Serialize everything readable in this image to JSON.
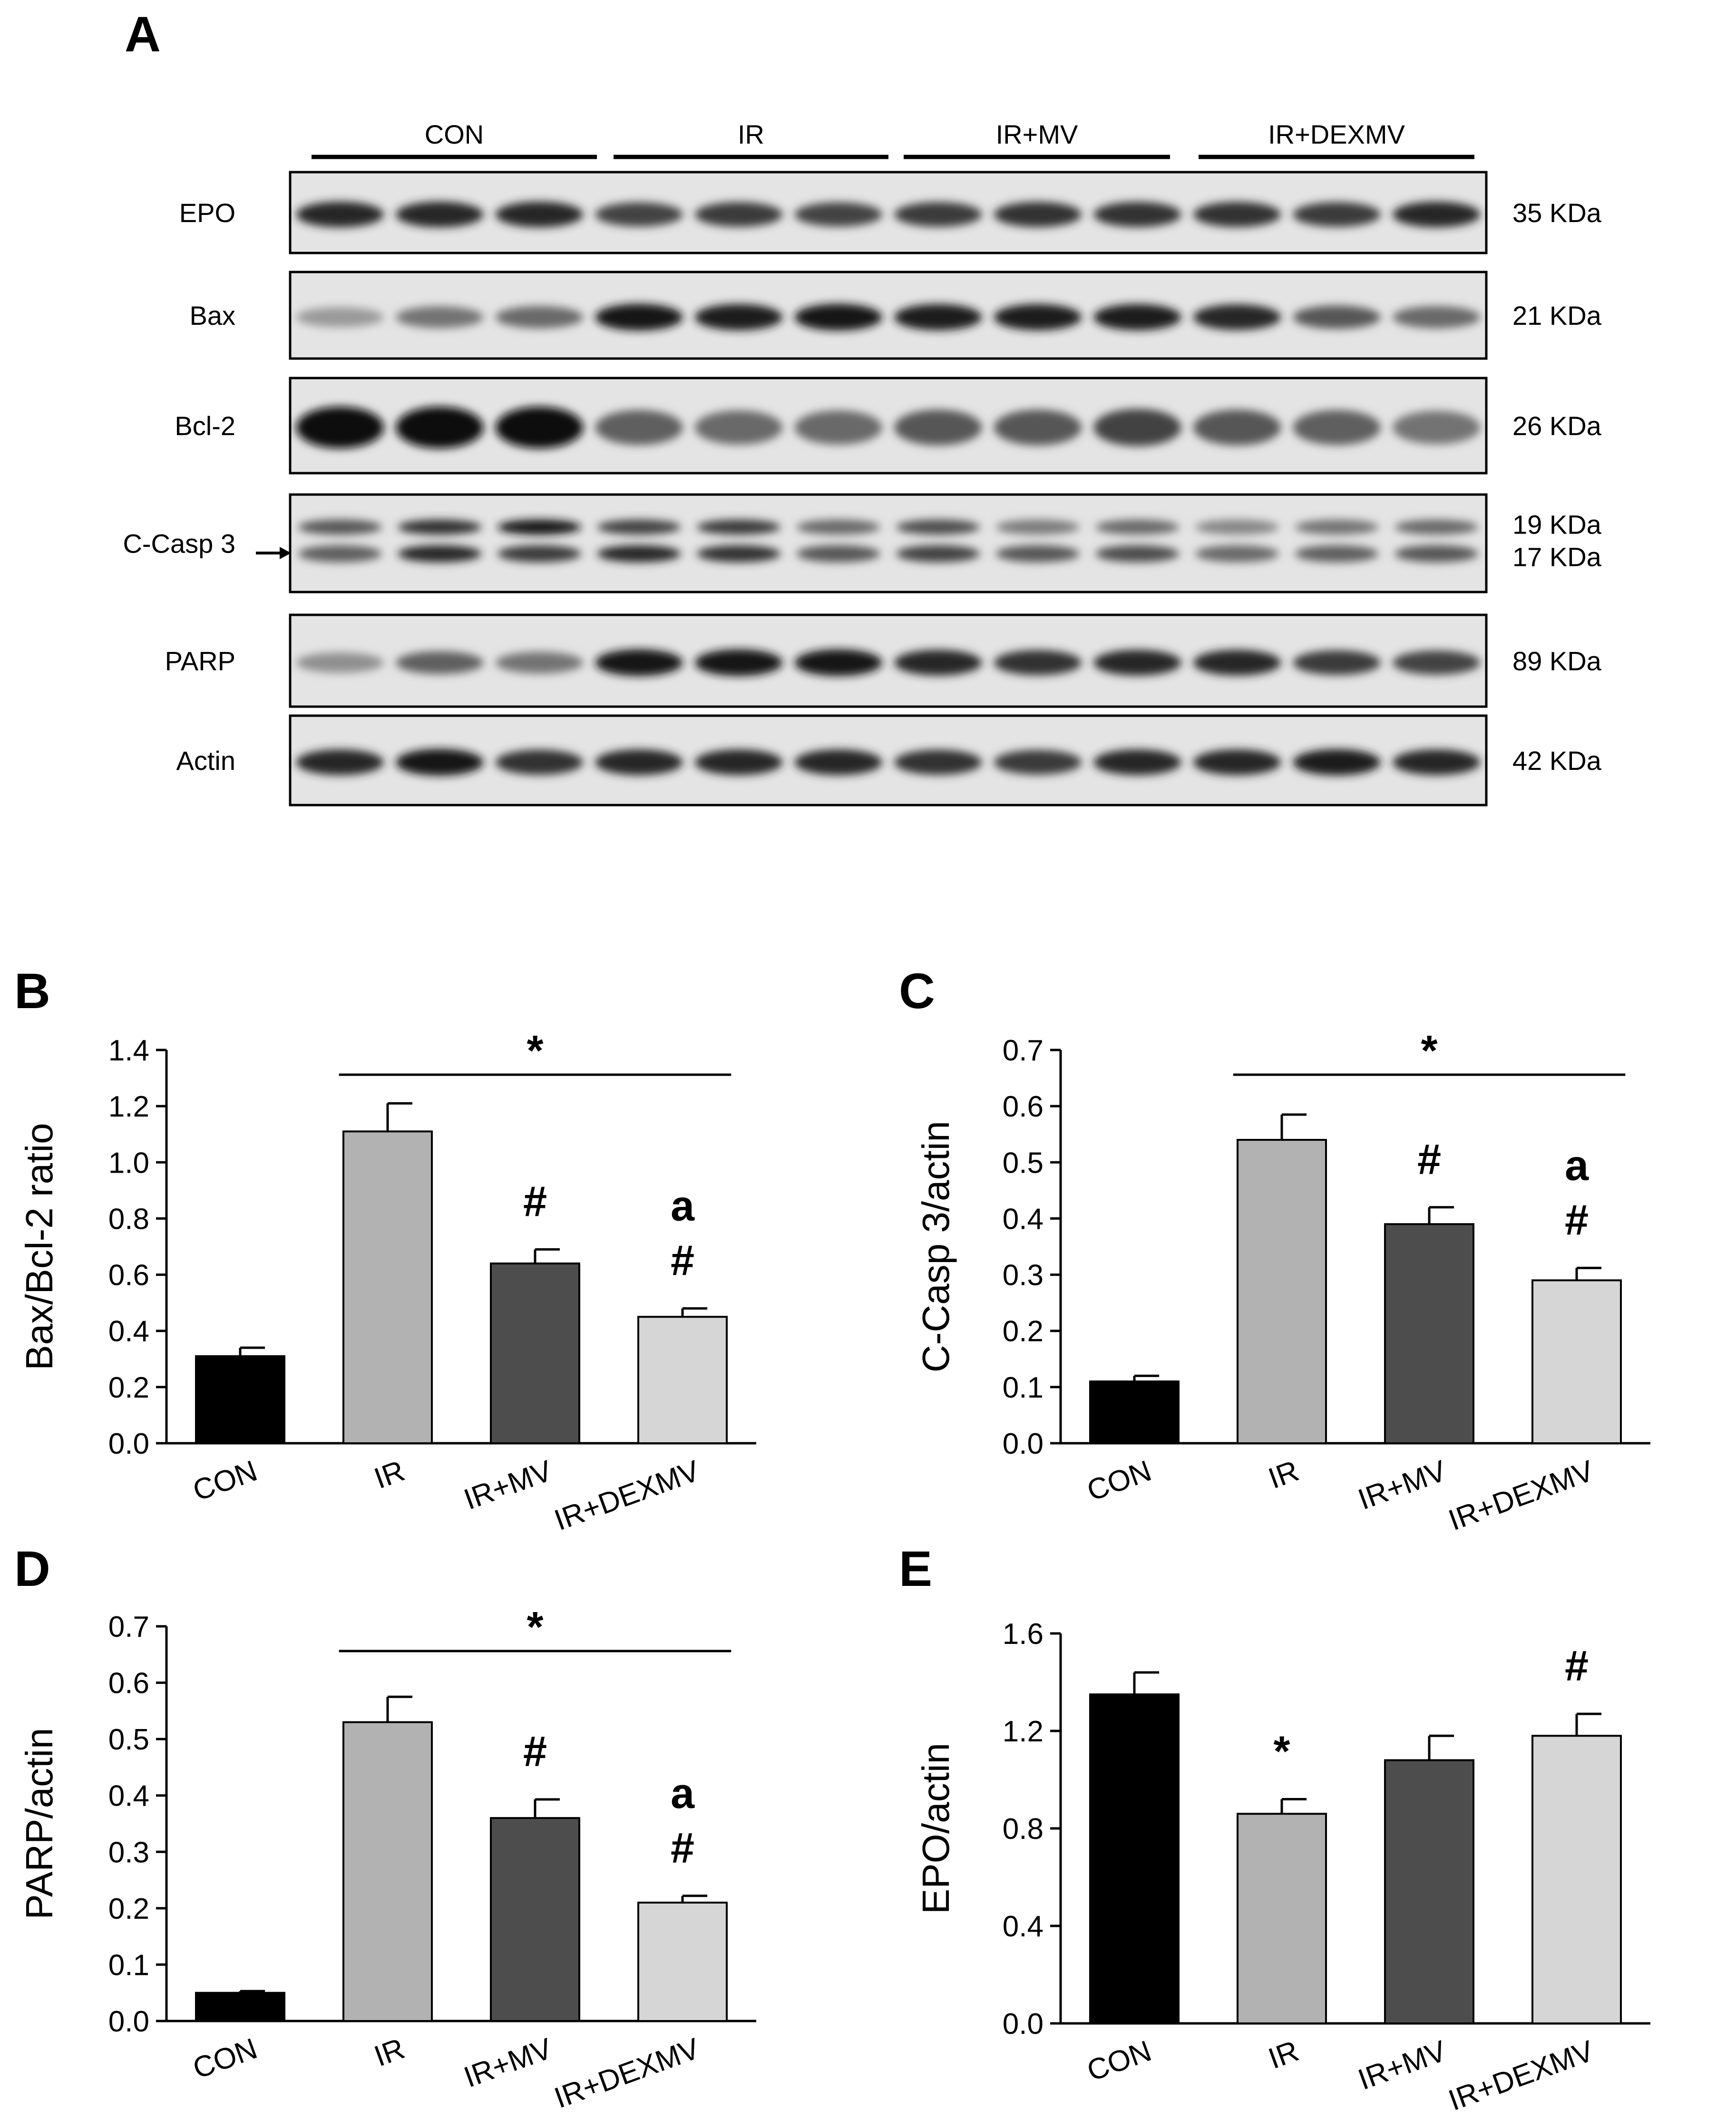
{
  "blot": {
    "panel": "A",
    "groups": [
      "CON",
      "IR",
      "IR+MV",
      "IR+DEXMV"
    ],
    "rows": [
      {
        "name": "EPO",
        "size": "35 KDa"
      },
      {
        "name": "Bax",
        "size": "21 KDa"
      },
      {
        "name": "Bcl-2",
        "size": "26 KDa"
      },
      {
        "name": "C-Casp 3",
        "size": "19 KDa",
        "size2": "17 KDa"
      },
      {
        "name": "PARP",
        "size": "89 KDa"
      },
      {
        "name": "Actin",
        "size": "42 KDa"
      }
    ],
    "bands": {
      "EPO": {
        "top": [
          0.85,
          0.85,
          0.85,
          0.7,
          0.75,
          0.7,
          0.75,
          0.8,
          0.8,
          0.8,
          0.75,
          0.85
        ]
      },
      "Bax": {
        "top": [
          0.25,
          0.45,
          0.5,
          0.95,
          0.9,
          0.95,
          0.9,
          0.9,
          0.9,
          0.85,
          0.6,
          0.5
        ]
      },
      "Bcl-2": {
        "top": [
          1.0,
          1.0,
          1.0,
          0.55,
          0.5,
          0.5,
          0.6,
          0.6,
          0.7,
          0.6,
          0.55,
          0.45
        ]
      },
      "C-Casp 3": {
        "top": [
          0.6,
          0.8,
          0.95,
          0.7,
          0.75,
          0.5,
          0.65,
          0.4,
          0.5,
          0.35,
          0.45,
          0.5
        ],
        "bottom": [
          0.55,
          0.85,
          0.75,
          0.85,
          0.8,
          0.6,
          0.7,
          0.6,
          0.65,
          0.5,
          0.55,
          0.6
        ]
      },
      "PARP": {
        "top": [
          0.3,
          0.55,
          0.45,
          0.95,
          0.95,
          0.95,
          0.85,
          0.8,
          0.85,
          0.85,
          0.75,
          0.7
        ]
      },
      "Actin": {
        "top": [
          0.85,
          0.95,
          0.8,
          0.85,
          0.85,
          0.85,
          0.8,
          0.75,
          0.85,
          0.85,
          0.9,
          0.85
        ]
      }
    }
  },
  "chart_data": [
    {
      "panel": "B",
      "type": "bar",
      "categories": [
        "CON",
        "IR",
        "IR+MV",
        "IR+DEXMV"
      ],
      "values": [
        0.31,
        1.11,
        0.64,
        0.45
      ],
      "errors": [
        0.03,
        0.1,
        0.05,
        0.03
      ],
      "colors": [
        "#000000",
        "#b2b2b2",
        "#4d4d4d",
        "#d6d6d6"
      ],
      "xlabel": "",
      "ylabel": "Bax/Bcl-2 ratio",
      "ylim": [
        0,
        1.4
      ],
      "yticks": [
        "0.0",
        "0.2",
        "0.4",
        "0.6",
        "0.8",
        "1.0",
        "1.2",
        "1.4"
      ],
      "marks": [
        [
          "",
          "",
          "#",
          "#"
        ],
        [
          "",
          "",
          "",
          "a"
        ]
      ],
      "bracket_label": "*",
      "bracket_from": 1,
      "bracket_to": 3
    },
    {
      "panel": "C",
      "type": "bar",
      "categories": [
        "CON",
        "IR",
        "IR+MV",
        "IR+DEXMV"
      ],
      "values": [
        0.11,
        0.54,
        0.39,
        0.29
      ],
      "errors": [
        0.01,
        0.045,
        0.03,
        0.022
      ],
      "colors": [
        "#000000",
        "#b2b2b2",
        "#4d4d4d",
        "#d6d6d6"
      ],
      "xlabel": "",
      "ylabel": "C-Casp 3/actin",
      "ylim": [
        0,
        0.7
      ],
      "yticks": [
        "0.0",
        "0.1",
        "0.2",
        "0.3",
        "0.4",
        "0.5",
        "0.6",
        "0.7"
      ],
      "marks": [
        [
          "",
          "",
          "#",
          "#"
        ],
        [
          "",
          "",
          "",
          "a"
        ]
      ],
      "bracket_label": "*",
      "bracket_from": 1,
      "bracket_to": 3
    },
    {
      "panel": "D",
      "type": "bar",
      "categories": [
        "CON",
        "IR",
        "IR+MV",
        "IR+DEXMV"
      ],
      "values": [
        0.05,
        0.53,
        0.36,
        0.21
      ],
      "errors": [
        0.003,
        0.045,
        0.033,
        0.012
      ],
      "colors": [
        "#000000",
        "#b2b2b2",
        "#4d4d4d",
        "#d6d6d6"
      ],
      "xlabel": "",
      "ylabel": "PARP/actin",
      "ylim": [
        0,
        0.7
      ],
      "yticks": [
        "0.0",
        "0.1",
        "0.2",
        "0.3",
        "0.4",
        "0.5",
        "0.6",
        "0.7"
      ],
      "marks": [
        [
          "",
          "",
          "#",
          "#"
        ],
        [
          "",
          "",
          "",
          "a"
        ]
      ],
      "bracket_label": "*",
      "bracket_from": 1,
      "bracket_to": 3
    },
    {
      "panel": "E",
      "type": "bar",
      "categories": [
        "CON",
        "IR",
        "IR+MV",
        "IR+DEXMV"
      ],
      "values": [
        1.35,
        0.86,
        1.08,
        1.18
      ],
      "errors": [
        0.09,
        0.06,
        0.1,
        0.09
      ],
      "colors": [
        "#000000",
        "#b2b2b2",
        "#4d4d4d",
        "#d6d6d6"
      ],
      "xlabel": "",
      "ylabel": "EPO/actin",
      "ylim": [
        0,
        1.6
      ],
      "yticks": [
        "0.0",
        "0.4",
        "0.8",
        "1.2",
        "1.6"
      ],
      "marks": [
        [
          "",
          "*",
          "",
          "#"
        ]
      ],
      "bracket_label": "",
      "bracket_from": null,
      "bracket_to": null
    }
  ]
}
